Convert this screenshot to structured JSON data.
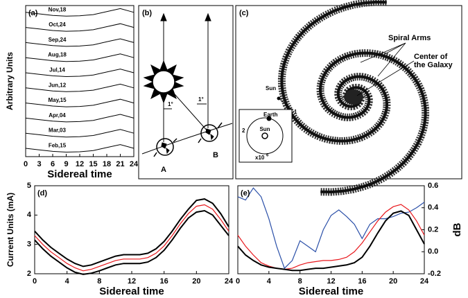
{
  "chart_data": [
    {
      "type": "line",
      "label": "(a)",
      "ylabel": "Arbitrary Units",
      "xlabel": "Sidereal time",
      "xlim": [
        0,
        24
      ],
      "xticks": [
        0,
        3,
        6,
        9,
        12,
        15,
        18,
        21,
        24
      ],
      "ylim": [
        0,
        10
      ],
      "curve_labels": true,
      "x": [
        0,
        3,
        6,
        9,
        12,
        15,
        18,
        21,
        24
      ],
      "series": [
        {
          "name": "Feb,15",
          "color": "#000000",
          "values": [
            0.55,
            0.45,
            0.35,
            0.3,
            0.32,
            0.4,
            0.6,
            0.8,
            0.55
          ]
        },
        {
          "name": "Mar,03",
          "color": "#000000",
          "values": [
            1.55,
            1.45,
            1.35,
            1.3,
            1.32,
            1.4,
            1.6,
            1.8,
            1.55
          ]
        },
        {
          "name": "Apr,04",
          "color": "#000000",
          "values": [
            2.55,
            2.45,
            2.35,
            2.3,
            2.32,
            2.4,
            2.6,
            2.8,
            2.55
          ]
        },
        {
          "name": "May,15",
          "color": "#000000",
          "values": [
            3.55,
            3.45,
            3.35,
            3.3,
            3.32,
            3.4,
            3.6,
            3.8,
            3.55
          ]
        },
        {
          "name": "Jun,12",
          "color": "#000000",
          "values": [
            4.55,
            4.45,
            4.35,
            4.3,
            4.32,
            4.4,
            4.6,
            4.8,
            4.55
          ]
        },
        {
          "name": "Jul,14",
          "color": "#000000",
          "values": [
            5.55,
            5.45,
            5.35,
            5.3,
            5.32,
            5.4,
            5.6,
            5.8,
            5.55
          ]
        },
        {
          "name": "Aug,18",
          "color": "#000000",
          "values": [
            6.55,
            6.45,
            6.35,
            6.3,
            6.32,
            6.4,
            6.6,
            6.8,
            6.55
          ]
        },
        {
          "name": "Sep,24",
          "color": "#000000",
          "values": [
            7.55,
            7.45,
            7.35,
            7.3,
            7.32,
            7.4,
            7.6,
            7.8,
            7.55
          ]
        },
        {
          "name": "Oct,24",
          "color": "#000000",
          "values": [
            8.55,
            8.45,
            8.35,
            8.3,
            8.32,
            8.4,
            8.6,
            8.8,
            8.55
          ]
        },
        {
          "name": "Nov,18",
          "color": "#000000",
          "values": [
            9.55,
            9.45,
            9.35,
            9.3,
            9.32,
            9.4,
            9.6,
            9.8,
            9.55
          ]
        }
      ]
    },
    {
      "type": "line",
      "label": "(d)",
      "ylabel": "Current Units (mA)",
      "xlabel": "Sidereal time",
      "xlim": [
        0,
        24
      ],
      "xticks": [
        0,
        4,
        8,
        12,
        16,
        20,
        24
      ],
      "ylim": [
        2,
        5
      ],
      "yticks": [
        2,
        3,
        4,
        5
      ],
      "yaxis_side": "left",
      "x": [
        0,
        1,
        2,
        3,
        4,
        5,
        6,
        7,
        8,
        9,
        10,
        11,
        12,
        13,
        14,
        15,
        16,
        17,
        18,
        19,
        20,
        21,
        22,
        23,
        24
      ],
      "series": [
        {
          "color": "#000000",
          "values": [
            3.45,
            3.15,
            2.9,
            2.7,
            2.5,
            2.35,
            2.25,
            2.3,
            2.4,
            2.5,
            2.6,
            2.65,
            2.65,
            2.65,
            2.7,
            2.85,
            3.1,
            3.45,
            3.85,
            4.2,
            4.5,
            4.55,
            4.4,
            4.05,
            3.6
          ]
        },
        {
          "color": "#000000",
          "values": [
            3.15,
            2.85,
            2.6,
            2.4,
            2.2,
            2.05,
            1.98,
            2.02,
            2.1,
            2.2,
            2.3,
            2.35,
            2.35,
            2.35,
            2.4,
            2.55,
            2.8,
            3.15,
            3.55,
            3.9,
            4.1,
            4.15,
            4.0,
            3.65,
            3.3
          ]
        },
        {
          "color": "#e8161b",
          "values": [
            3.3,
            3.0,
            2.75,
            2.55,
            2.35,
            2.2,
            2.1,
            2.15,
            2.25,
            2.35,
            2.45,
            2.5,
            2.5,
            2.5,
            2.55,
            2.7,
            2.95,
            3.3,
            3.7,
            4.05,
            4.3,
            4.35,
            4.2,
            3.85,
            3.45
          ]
        }
      ]
    },
    {
      "type": "line",
      "label": "(e)",
      "ylabel": "dB",
      "xlabel": "Sidereal time",
      "xlim": [
        0,
        24
      ],
      "xticks": [
        0,
        4,
        8,
        12,
        16,
        20,
        24
      ],
      "ylim": [
        -0.2,
        0.6
      ],
      "yticks": [
        -0.2,
        {
          "value": 0,
          "label": "0.0"
        },
        0.2,
        0.4,
        0.6
      ],
      "yaxis_side": "right",
      "x": [
        0,
        1,
        2,
        3,
        4,
        5,
        6,
        7,
        8,
        9,
        10,
        11,
        12,
        13,
        14,
        15,
        16,
        17,
        18,
        19,
        20,
        21,
        22,
        23,
        24
      ],
      "series": [
        {
          "color": "#2a4fa8",
          "values": [
            0.5,
            0.47,
            0.58,
            0.5,
            0.3,
            0.05,
            -0.15,
            -0.08,
            0.1,
            0.05,
            0.0,
            0.2,
            0.33,
            0.38,
            0.32,
            0.25,
            0.12,
            0.25,
            0.3,
            0.3,
            0.32,
            0.35,
            0.36,
            0.4,
            0.45
          ]
        },
        {
          "color": "#e8161b",
          "values": [
            0.15,
            0.05,
            -0.03,
            -0.1,
            -0.13,
            -0.15,
            -0.16,
            -0.15,
            -0.12,
            -0.1,
            -0.09,
            -0.08,
            -0.08,
            -0.07,
            -0.05,
            0.0,
            0.08,
            0.18,
            0.28,
            0.36,
            0.41,
            0.43,
            0.38,
            0.28,
            0.15
          ]
        },
        {
          "color": "#000000",
          "values": [
            0.05,
            -0.03,
            -0.08,
            -0.12,
            -0.14,
            -0.15,
            -0.16,
            -0.17,
            -0.17,
            -0.16,
            -0.15,
            -0.15,
            -0.14,
            -0.13,
            -0.12,
            -0.1,
            -0.05,
            0.05,
            0.17,
            0.28,
            0.35,
            0.37,
            0.33,
            0.2,
            0.07
          ]
        }
      ]
    }
  ],
  "diagrams": {
    "b": {
      "label": "(b)",
      "earth_a": "A",
      "earth_b": "B",
      "angle_1": "1°",
      "angle_2": "1°"
    },
    "c": {
      "label": "(c)",
      "spiral_arms": "Spiral Arms",
      "center": [
        "Center of",
        "the Galaxy"
      ],
      "sun": "Sun",
      "inset_earth": "Earth",
      "inset_sun": "Sun",
      "scale": "x10",
      "scale_exp": "6",
      "pos_1": "1",
      "pos_2": "2"
    }
  }
}
